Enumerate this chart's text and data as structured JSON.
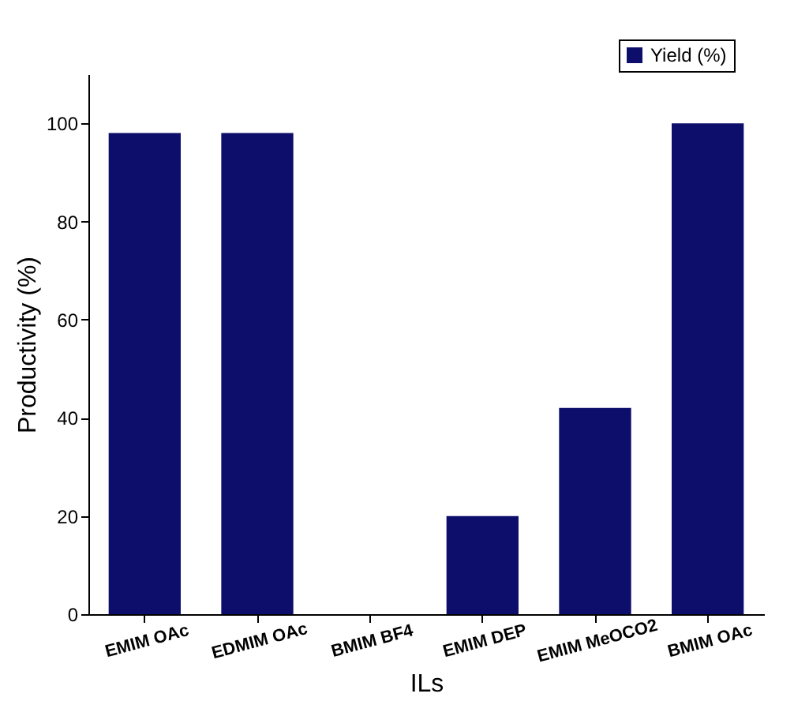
{
  "chart_data": {
    "type": "bar",
    "xlabel": "ILs",
    "ylabel": "Productivity (%)",
    "categories": [
      "EMIM OAc",
      "EDMIM OAc",
      "BMIM BF4",
      "EMIM DEP",
      "EMIM MeOCO2",
      "BMIM OAc"
    ],
    "series": [
      {
        "name": "Yield (%)",
        "color": "#0d0d6b",
        "values": [
          98,
          98,
          0,
          20,
          42,
          100
        ]
      }
    ],
    "ylim": [
      0,
      110
    ],
    "yticks": [
      0,
      20,
      40,
      60,
      80,
      100
    ],
    "grid": false,
    "legend": "top right"
  }
}
